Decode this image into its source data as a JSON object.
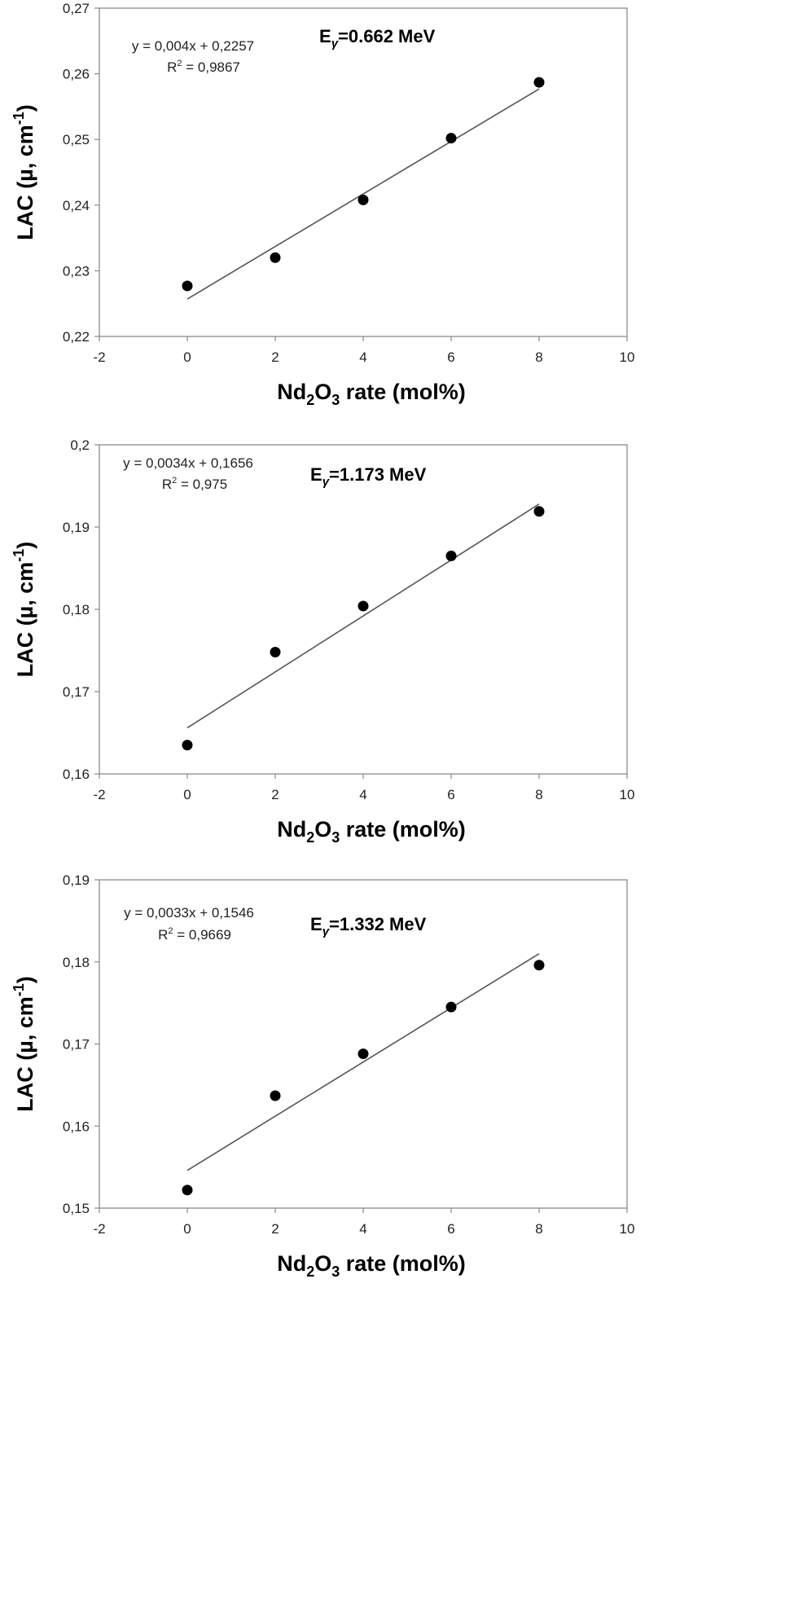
{
  "chart_data": [
    {
      "type": "scatter",
      "energy_label": {
        "symbol": "E",
        "sub": "γ",
        "text": "=0.662 MeV"
      },
      "equation": "y = 0,004x + 0,2257",
      "r2": {
        "prefix": "R",
        "sup": "2",
        "text": " = 0,9867"
      },
      "xlabel": {
        "a": "Nd",
        "sub1": "2",
        "b": "O",
        "sub2": "3",
        "c": " rate (mol%)"
      },
      "ylabel": {
        "a": "LAC (µ, cm",
        "sup": "-1",
        "b": ")"
      },
      "xlim": [
        -2,
        10
      ],
      "ylim": [
        0.22,
        0.27
      ],
      "xticks": [
        -2,
        0,
        2,
        4,
        6,
        8,
        10
      ],
      "xtick_labels": [
        "-2",
        "0",
        "2",
        "4",
        "6",
        "8",
        "10"
      ],
      "yticks": [
        0.22,
        0.23,
        0.24,
        0.25,
        0.26,
        0.27
      ],
      "ytick_labels": [
        "0,22",
        "0,23",
        "0,24",
        "0,25",
        "0,26",
        "0,27"
      ],
      "points": {
        "x": [
          0,
          2,
          4,
          6,
          8
        ],
        "y": [
          0.2277,
          0.232,
          0.2408,
          0.2502,
          0.2587
        ]
      },
      "trendline": {
        "slope": 0.004,
        "intercept": 0.2257,
        "x_range": [
          0,
          8
        ]
      },
      "grid": false
    },
    {
      "type": "scatter",
      "energy_label": {
        "symbol": "E",
        "sub": "γ",
        "text": "=1.173 MeV"
      },
      "equation": "y = 0,0034x + 0,1656",
      "r2": {
        "prefix": "R",
        "sup": "2",
        "text": " = 0,975"
      },
      "xlabel": {
        "a": "Nd",
        "sub1": "2",
        "b": "O",
        "sub2": "3",
        "c": " rate (mol%)"
      },
      "ylabel": {
        "a": "LAC (µ, cm",
        "sup": "-1",
        "b": ")"
      },
      "xlim": [
        -2,
        10
      ],
      "ylim": [
        0.16,
        0.2
      ],
      "xticks": [
        -2,
        0,
        2,
        4,
        6,
        8,
        10
      ],
      "xtick_labels": [
        "-2",
        "0",
        "2",
        "4",
        "6",
        "8",
        "10"
      ],
      "yticks": [
        0.16,
        0.17,
        0.18,
        0.19,
        0.2
      ],
      "ytick_labels": [
        "0,16",
        "0,17",
        "0,18",
        "0,19",
        "0,2"
      ],
      "points": {
        "x": [
          0,
          2,
          4,
          6,
          8
        ],
        "y": [
          0.1635,
          0.1748,
          0.1804,
          0.1865,
          0.1919
        ]
      },
      "trendline": {
        "slope": 0.0034,
        "intercept": 0.1656,
        "x_range": [
          0,
          8
        ]
      },
      "grid": false
    },
    {
      "type": "scatter",
      "energy_label": {
        "symbol": "E",
        "sub": "γ",
        "text": "=1.332 MeV"
      },
      "equation": "y = 0,0033x + 0,1546",
      "r2": {
        "prefix": "R",
        "sup": "2",
        "text": " = 0,9669"
      },
      "xlabel": {
        "a": "Nd",
        "sub1": "2",
        "b": "O",
        "sub2": "3",
        "c": " rate (mol%)"
      },
      "ylabel": {
        "a": "LAC (µ, cm",
        "sup": "-1",
        "b": ")"
      },
      "xlim": [
        -2,
        10
      ],
      "ylim": [
        0.15,
        0.19
      ],
      "xticks": [
        -2,
        0,
        2,
        4,
        6,
        8,
        10
      ],
      "xtick_labels": [
        "-2",
        "0",
        "2",
        "4",
        "6",
        "8",
        "10"
      ],
      "yticks": [
        0.15,
        0.16,
        0.17,
        0.18,
        0.19
      ],
      "ytick_labels": [
        "0,15",
        "0,16",
        "0,17",
        "0,18",
        "0,19"
      ],
      "points": {
        "x": [
          0,
          2,
          4,
          6,
          8
        ],
        "y": [
          0.1522,
          0.1637,
          0.1688,
          0.1745,
          0.1796
        ]
      },
      "trendline": {
        "slope": 0.0033,
        "intercept": 0.1546,
        "x_range": [
          0,
          8
        ]
      },
      "grid": false
    }
  ]
}
